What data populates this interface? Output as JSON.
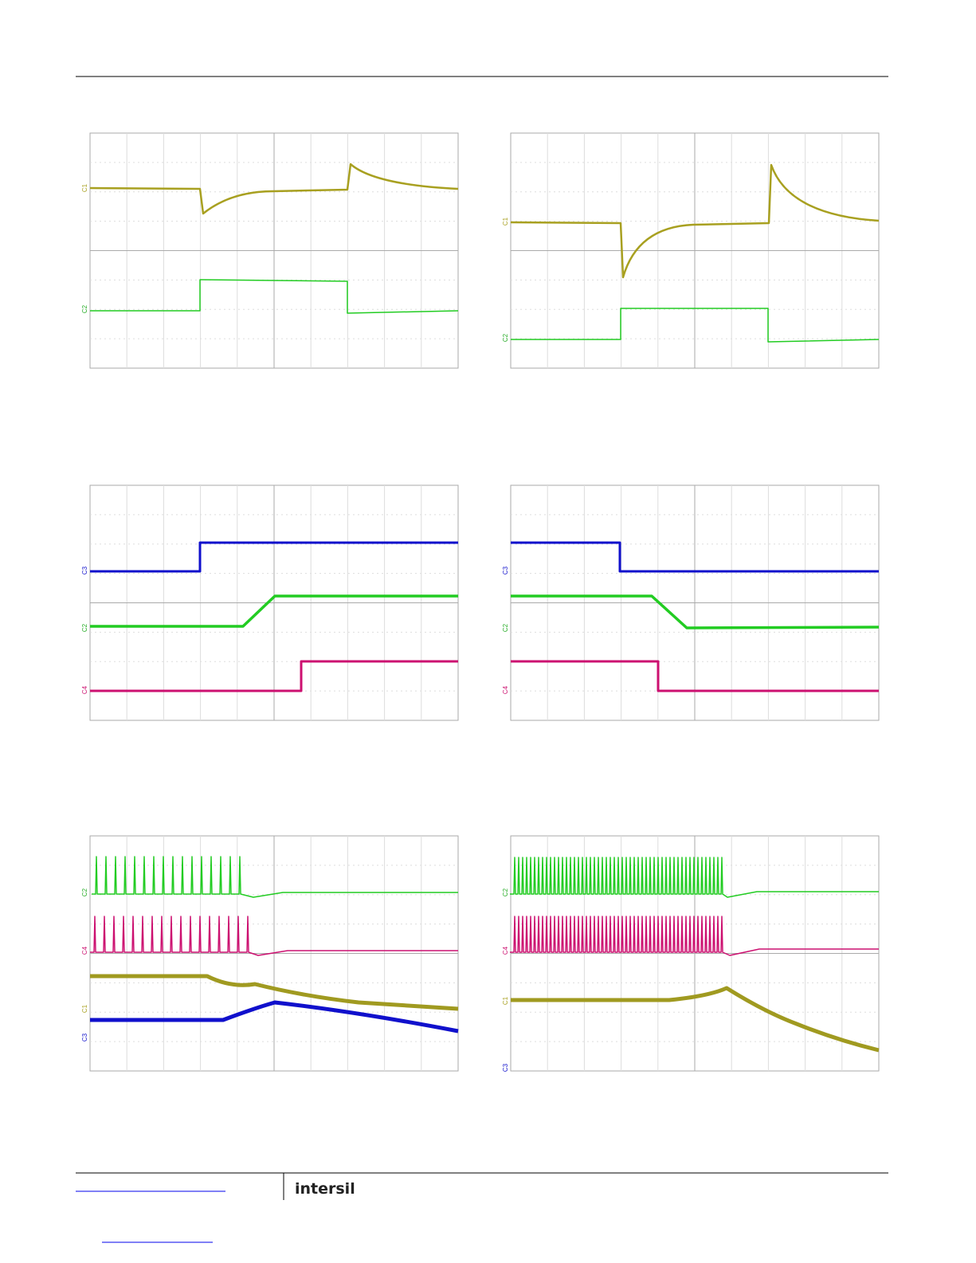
{
  "panels": [
    {
      "channel_labels": [
        "C1",
        "C2"
      ]
    },
    {
      "channel_labels": [
        "C1",
        "C2"
      ]
    },
    {
      "channel_labels": [
        "C3",
        "C2",
        "C4"
      ]
    },
    {
      "channel_labels": [
        "C3",
        "C2",
        "C4"
      ]
    },
    {
      "channel_labels": [
        "C2",
        "C4",
        "C1",
        "C3"
      ]
    },
    {
      "channel_labels": [
        "C2",
        "C4",
        "C1",
        "C3"
      ]
    }
  ],
  "footer": {
    "logo": "intersil"
  }
}
